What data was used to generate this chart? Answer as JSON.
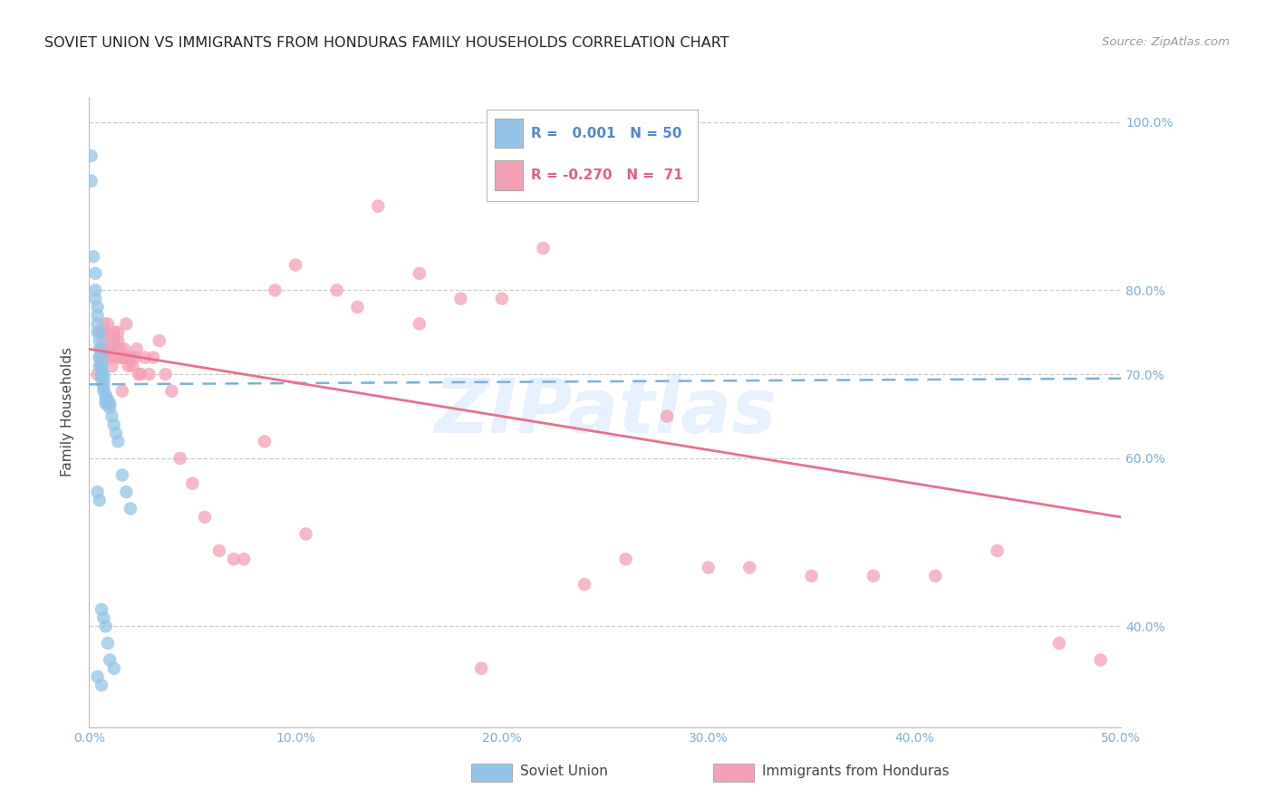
{
  "title": "SOVIET UNION VS IMMIGRANTS FROM HONDURAS FAMILY HOUSEHOLDS CORRELATION CHART",
  "source": "Source: ZipAtlas.com",
  "ylabel": "Family Households",
  "xlim": [
    0.0,
    0.5
  ],
  "ylim": [
    0.28,
    1.03
  ],
  "background_color": "#ffffff",
  "blue_color": "#92C5E8",
  "pink_color": "#F4A0B5",
  "blue_line_color": "#7BAFD4",
  "pink_line_color": "#E8708A",
  "watermark": "ZIPatlas",
  "legend_r_blue": " 0.001",
  "legend_n_blue": "50",
  "legend_r_pink": "-0.270",
  "legend_n_pink": " 71",
  "blue_x": [
    0.001,
    0.001,
    0.002,
    0.003,
    0.003,
    0.003,
    0.004,
    0.004,
    0.004,
    0.004,
    0.005,
    0.005,
    0.005,
    0.005,
    0.005,
    0.006,
    0.006,
    0.006,
    0.006,
    0.006,
    0.006,
    0.007,
    0.007,
    0.007,
    0.007,
    0.007,
    0.008,
    0.008,
    0.008,
    0.009,
    0.009,
    0.01,
    0.01,
    0.011,
    0.012,
    0.013,
    0.014,
    0.016,
    0.018,
    0.02,
    0.004,
    0.005,
    0.006,
    0.007,
    0.008,
    0.009,
    0.01,
    0.012,
    0.004,
    0.006
  ],
  "blue_y": [
    0.96,
    0.93,
    0.84,
    0.82,
    0.8,
    0.79,
    0.78,
    0.77,
    0.76,
    0.75,
    0.75,
    0.74,
    0.73,
    0.72,
    0.71,
    0.72,
    0.71,
    0.71,
    0.7,
    0.7,
    0.695,
    0.7,
    0.695,
    0.69,
    0.685,
    0.68,
    0.675,
    0.67,
    0.665,
    0.67,
    0.665,
    0.665,
    0.66,
    0.65,
    0.64,
    0.63,
    0.62,
    0.58,
    0.56,
    0.54,
    0.56,
    0.55,
    0.42,
    0.41,
    0.4,
    0.38,
    0.36,
    0.35,
    0.34,
    0.33
  ],
  "pink_x": [
    0.004,
    0.005,
    0.006,
    0.006,
    0.007,
    0.007,
    0.008,
    0.008,
    0.009,
    0.009,
    0.01,
    0.01,
    0.011,
    0.011,
    0.012,
    0.012,
    0.013,
    0.013,
    0.014,
    0.014,
    0.015,
    0.015,
    0.016,
    0.016,
    0.017,
    0.017,
    0.018,
    0.018,
    0.019,
    0.02,
    0.021,
    0.022,
    0.023,
    0.024,
    0.025,
    0.027,
    0.029,
    0.031,
    0.034,
    0.037,
    0.04,
    0.044,
    0.05,
    0.056,
    0.063,
    0.07,
    0.085,
    0.1,
    0.12,
    0.14,
    0.16,
    0.18,
    0.2,
    0.22,
    0.24,
    0.26,
    0.28,
    0.3,
    0.32,
    0.35,
    0.38,
    0.41,
    0.44,
    0.47,
    0.49,
    0.13,
    0.16,
    0.09,
    0.105,
    0.075,
    0.19
  ],
  "pink_y": [
    0.7,
    0.72,
    0.73,
    0.75,
    0.74,
    0.76,
    0.72,
    0.75,
    0.73,
    0.76,
    0.72,
    0.73,
    0.74,
    0.71,
    0.74,
    0.75,
    0.72,
    0.73,
    0.74,
    0.75,
    0.72,
    0.73,
    0.72,
    0.68,
    0.72,
    0.73,
    0.76,
    0.72,
    0.71,
    0.72,
    0.71,
    0.72,
    0.73,
    0.7,
    0.7,
    0.72,
    0.7,
    0.72,
    0.74,
    0.7,
    0.68,
    0.6,
    0.57,
    0.53,
    0.49,
    0.48,
    0.62,
    0.83,
    0.8,
    0.9,
    0.82,
    0.79,
    0.79,
    0.85,
    0.45,
    0.48,
    0.65,
    0.47,
    0.47,
    0.46,
    0.46,
    0.46,
    0.49,
    0.38,
    0.36,
    0.78,
    0.76,
    0.8,
    0.51,
    0.48,
    0.35
  ],
  "blue_trendline_x": [
    0.0,
    0.5
  ],
  "blue_trendline_y": [
    0.688,
    0.695
  ],
  "pink_trendline_x": [
    0.0,
    0.5
  ],
  "pink_trendline_y": [
    0.73,
    0.53
  ]
}
